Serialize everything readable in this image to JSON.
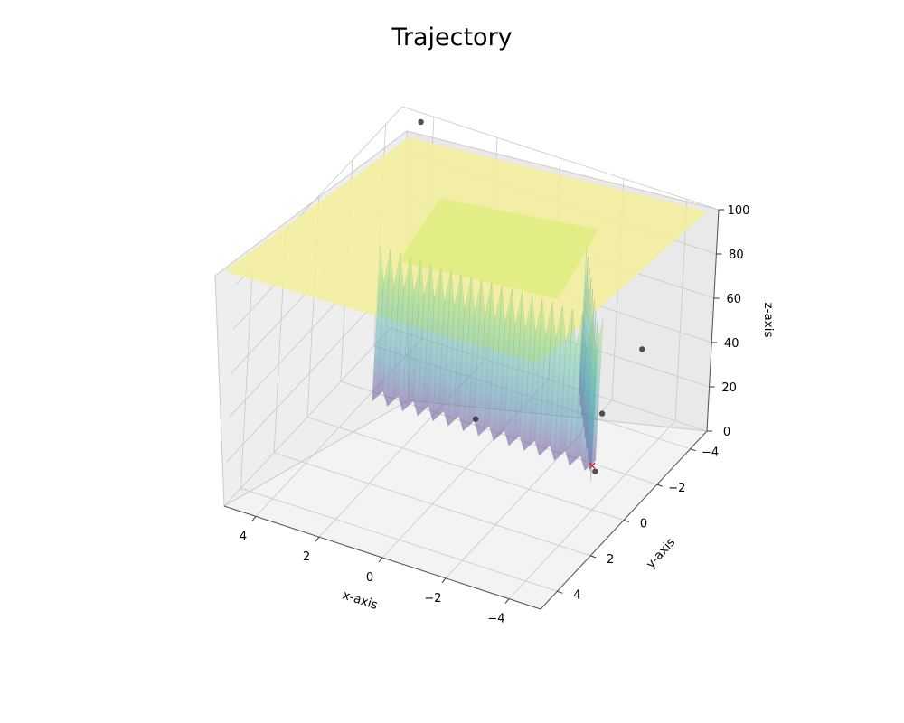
{
  "chart_data": {
    "type": "surface3d",
    "title": "Trajectory",
    "xlabel": "x-axis",
    "ylabel": "y-axis",
    "zlabel": "z-axis",
    "xlim": [
      -5,
      5
    ],
    "ylim": [
      -5,
      5
    ],
    "zlim": [
      0,
      100
    ],
    "x_ticks": [
      "4",
      "2",
      "0",
      "−2",
      "−4"
    ],
    "y_ticks": [
      "−4",
      "−2",
      "0",
      "2",
      "4"
    ],
    "z_ticks": [
      "0",
      "20",
      "40",
      "60",
      "80",
      "100"
    ],
    "surface": {
      "colormap": "viridis",
      "cap_value": 100,
      "description_values": "z = min(cap, basin function); low spiky valley near x in [-2,4], y in [-5,-1]"
    },
    "trajectory_points": [
      {
        "x": 4.2,
        "y": -4.6,
        "z": 100
      },
      {
        "x": 0.5,
        "y": -1.5,
        "z": 8
      },
      {
        "x": -2.3,
        "y": -3.8,
        "z": 5
      },
      {
        "x": -2.9,
        "y": -4.9,
        "z": 28
      },
      {
        "x": -3.3,
        "y": -1.5,
        "z": 2
      }
    ],
    "minimum_marker": {
      "x": -3.0,
      "y": -1.9,
      "z": 0
    },
    "colors": {
      "pane": "#f2f2f2",
      "grid": "#c8c8c8",
      "plateau": "#f5ef9a",
      "points": "#333333",
      "minimum": "#d62728"
    }
  }
}
